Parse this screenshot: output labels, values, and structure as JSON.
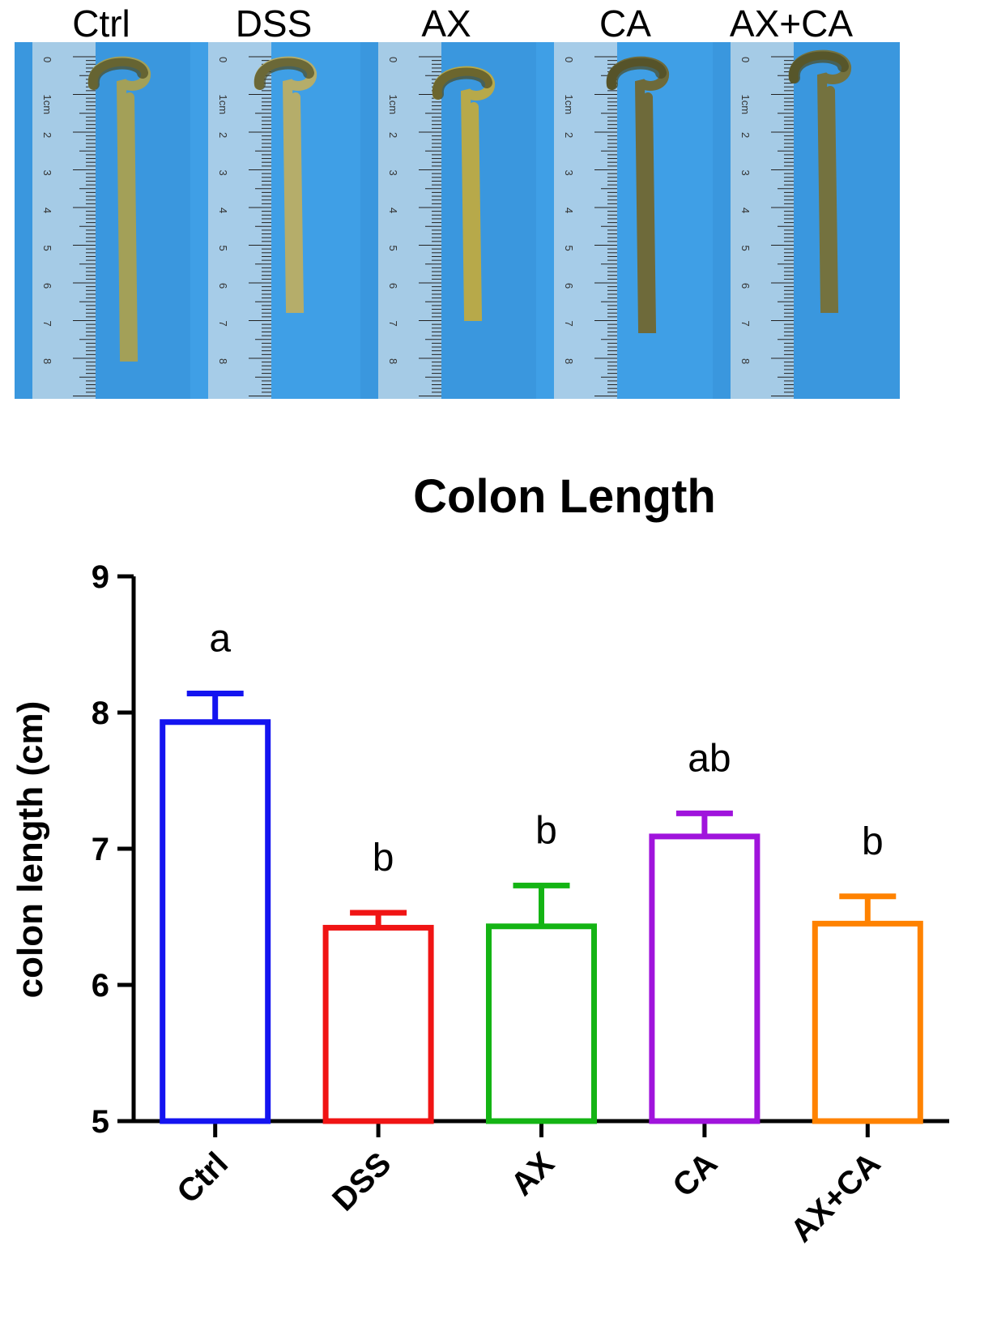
{
  "photo": {
    "panels": [
      {
        "label": "Ctrl",
        "tissue_color": "#a3a058"
      },
      {
        "label": "DSS",
        "tissue_color": "#b5ad6a"
      },
      {
        "label": "AX",
        "tissue_color": "#b7a94a"
      },
      {
        "label": "CA",
        "tissue_color": "#6e6a3a"
      },
      {
        "label": "AX+CA",
        "tissue_color": "#74723f"
      }
    ],
    "ruler_numbers": [
      "0",
      "1cm",
      "2",
      "3",
      "4",
      "5",
      "6",
      "7",
      "8"
    ],
    "background_color": "#3d9be3"
  },
  "chart_data": {
    "type": "bar",
    "title": "Colon Length",
    "ylabel": "colon length (cm)",
    "xlabel": "",
    "ylim": [
      5,
      9
    ],
    "yticks": [
      5,
      6,
      7,
      8,
      9
    ],
    "grid": false,
    "legend": "none",
    "categories": [
      "Ctrl",
      "DSS",
      "AX",
      "CA",
      "AX+CA"
    ],
    "values": [
      7.93,
      6.42,
      6.43,
      7.09,
      6.45
    ],
    "errors": [
      0.21,
      0.11,
      0.3,
      0.17,
      0.2
    ],
    "significance": [
      "a",
      "b",
      "b",
      "ab",
      "b"
    ],
    "colors": [
      "#1414f0",
      "#f01414",
      "#14b414",
      "#a014dc",
      "#ff8200"
    ]
  }
}
